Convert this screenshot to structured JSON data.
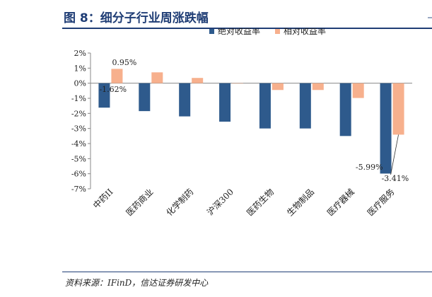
{
  "header": {
    "title": "图 8：细分子行业周涨跌幅"
  },
  "source": {
    "text": "资料来源：IFinD，信达证券研发中心"
  },
  "colors": {
    "absolute": "#2e5a8c",
    "relative": "#f7b08d",
    "title": "#1f3d75"
  },
  "chart_data": {
    "type": "bar",
    "title": "",
    "xlabel": "",
    "ylabel": "",
    "ylim": [
      -7,
      2
    ],
    "yticks": [
      2,
      1,
      0,
      -1,
      -2,
      -3,
      -4,
      -5,
      -6,
      -7
    ],
    "ytick_labels": [
      "2%",
      "1%",
      "0%",
      "-1%",
      "-2%",
      "-3%",
      "-4%",
      "-5%",
      "-6%",
      "-7%"
    ],
    "legend_position": "top-right",
    "categories": [
      "中药II",
      "医药商业",
      "化学制药",
      "沪深300",
      "医药生物",
      "生物制品",
      "医疗器械",
      "医疗服务"
    ],
    "series": [
      {
        "name": "绝对收益率",
        "color": "#2e5a8c",
        "values": [
          -1.62,
          -1.85,
          -2.2,
          -2.55,
          -3.0,
          -3.0,
          -3.5,
          -5.99
        ]
      },
      {
        "name": "相对收益率",
        "color": "#f7b08d",
        "values": [
          0.95,
          0.72,
          0.35,
          0.0,
          -0.45,
          -0.45,
          -0.98,
          -3.41
        ]
      }
    ],
    "annotations": [
      {
        "series": 1,
        "index": 0,
        "text": "0.95%"
      },
      {
        "series": 0,
        "index": 0,
        "text": "-1.62%"
      },
      {
        "series": 0,
        "index": 7,
        "text": "-5.99%"
      },
      {
        "series": 1,
        "index": 7,
        "text": "-3.41%"
      }
    ]
  }
}
